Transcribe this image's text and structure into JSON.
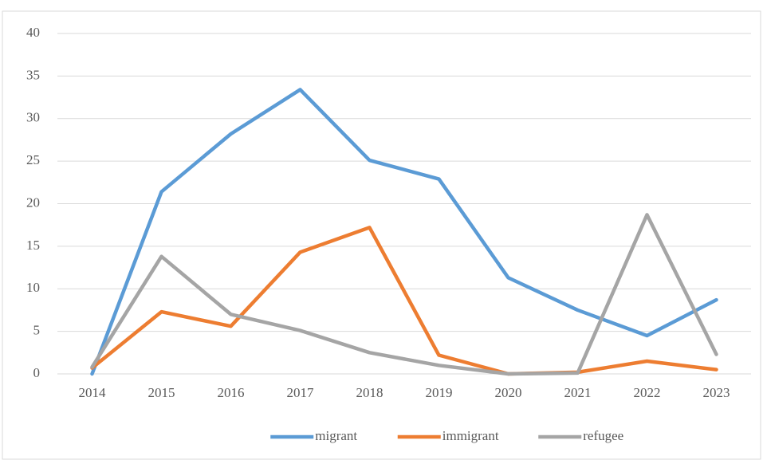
{
  "chart_data": {
    "type": "line",
    "categories": [
      "2014",
      "2015",
      "2016",
      "2017",
      "2018",
      "2019",
      "2020",
      "2021",
      "2022",
      "2023"
    ],
    "series": [
      {
        "name": "migrant",
        "color": "#5b9bd5",
        "values": [
          0,
          21.4,
          28.2,
          33.4,
          25.1,
          22.9,
          11.3,
          7.5,
          4.5,
          8.7
        ]
      },
      {
        "name": "immigrant",
        "color": "#ed7d31",
        "values": [
          0.7,
          7.3,
          5.6,
          14.3,
          17.2,
          2.2,
          0,
          0.2,
          1.5,
          0.5
        ]
      },
      {
        "name": "refugee",
        "color": "#a5a5a5",
        "values": [
          0.8,
          13.8,
          7.0,
          5.1,
          2.5,
          1.0,
          0,
          0.1,
          18.7,
          2.3
        ]
      }
    ],
    "ylim": [
      0,
      40
    ],
    "yticks": [
      0,
      5,
      10,
      15,
      20,
      25,
      30,
      35,
      40
    ],
    "grid": true,
    "legend": "bottom"
  }
}
